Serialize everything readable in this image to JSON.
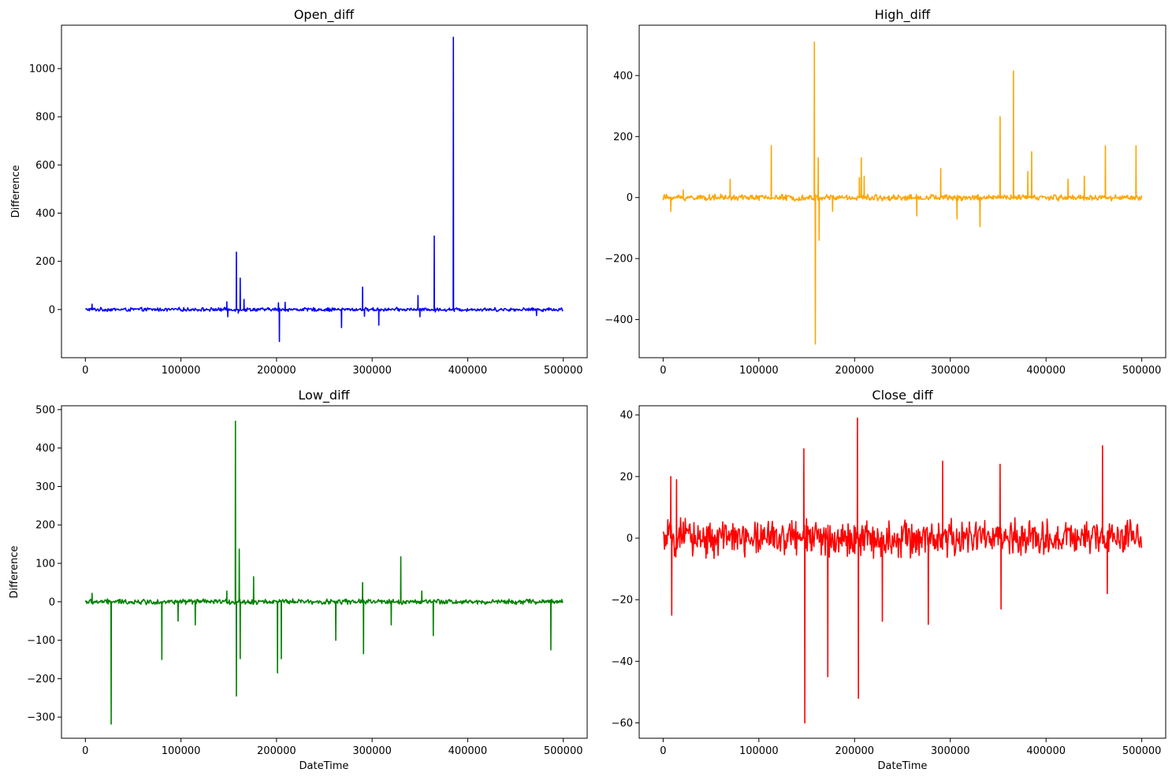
{
  "chart_data": [
    {
      "type": "line",
      "title": "Open_diff",
      "xlabel": "",
      "ylabel": "Difference",
      "color": "#0000ff",
      "xlim": [
        -25000,
        525000
      ],
      "ylim": [
        -200,
        1180
      ],
      "xticks": [
        0,
        100000,
        200000,
        300000,
        400000,
        500000
      ],
      "xtick_labels": [
        "0",
        "100000",
        "200000",
        "300000",
        "400000",
        "500000"
      ],
      "yticks": [
        0,
        200,
        400,
        600,
        800,
        1000
      ],
      "ytick_labels": [
        "0",
        "200",
        "400",
        "600",
        "800",
        "1000"
      ],
      "x_range": [
        0,
        500000
      ],
      "noise_amplitude": 9,
      "spikes": [
        {
          "x": 7000,
          "y": 22
        },
        {
          "x": 148000,
          "y": 32
        },
        {
          "x": 149000,
          "y": -30
        },
        {
          "x": 158000,
          "y": 238
        },
        {
          "x": 160000,
          "y": -15
        },
        {
          "x": 162000,
          "y": 130
        },
        {
          "x": 166000,
          "y": 42
        },
        {
          "x": 202000,
          "y": 28
        },
        {
          "x": 203000,
          "y": -133
        },
        {
          "x": 209000,
          "y": 30
        },
        {
          "x": 268000,
          "y": -75
        },
        {
          "x": 290000,
          "y": 93
        },
        {
          "x": 292000,
          "y": -28
        },
        {
          "x": 307000,
          "y": -65
        },
        {
          "x": 348000,
          "y": 58
        },
        {
          "x": 350000,
          "y": -30
        },
        {
          "x": 365000,
          "y": 305
        },
        {
          "x": 366000,
          "y": -10
        },
        {
          "x": 385000,
          "y": 1130
        },
        {
          "x": 386000,
          "y": -8
        },
        {
          "x": 472000,
          "y": -25
        }
      ]
    },
    {
      "type": "line",
      "title": "High_diff",
      "xlabel": "",
      "ylabel": "",
      "color": "#ffa500",
      "xlim": [
        -25000,
        525000
      ],
      "ylim": [
        -525,
        565
      ],
      "xticks": [
        0,
        100000,
        200000,
        300000,
        400000,
        500000
      ],
      "xtick_labels": [
        "0",
        "100000",
        "200000",
        "300000",
        "400000",
        "500000"
      ],
      "yticks": [
        -400,
        -200,
        0,
        200,
        400
      ],
      "ytick_labels": [
        "−400",
        "−200",
        "0",
        "200",
        "400"
      ],
      "x_range": [
        0,
        500000
      ],
      "noise_amplitude": 12,
      "spikes": [
        {
          "x": 8000,
          "y": -45
        },
        {
          "x": 21000,
          "y": 25
        },
        {
          "x": 70000,
          "y": 60
        },
        {
          "x": 113000,
          "y": 170
        },
        {
          "x": 158000,
          "y": 510
        },
        {
          "x": 159000,
          "y": -480
        },
        {
          "x": 162000,
          "y": 130
        },
        {
          "x": 163000,
          "y": -140
        },
        {
          "x": 177000,
          "y": -45
        },
        {
          "x": 205000,
          "y": 65
        },
        {
          "x": 207000,
          "y": 130
        },
        {
          "x": 210000,
          "y": 70
        },
        {
          "x": 265000,
          "y": -60
        },
        {
          "x": 290000,
          "y": 95
        },
        {
          "x": 307000,
          "y": -70
        },
        {
          "x": 331000,
          "y": -95
        },
        {
          "x": 352000,
          "y": 265
        },
        {
          "x": 366000,
          "y": 415
        },
        {
          "x": 385000,
          "y": 150
        },
        {
          "x": 381000,
          "y": 85
        },
        {
          "x": 423000,
          "y": 60
        },
        {
          "x": 440000,
          "y": 70
        },
        {
          "x": 462000,
          "y": 170
        },
        {
          "x": 494000,
          "y": 170
        }
      ]
    },
    {
      "type": "line",
      "title": "Low_diff",
      "xlabel": "DateTime",
      "ylabel": "Difference",
      "color": "#008000",
      "xlim": [
        -25000,
        525000
      ],
      "ylim": [
        -355,
        510
      ],
      "xticks": [
        0,
        100000,
        200000,
        300000,
        400000,
        500000
      ],
      "xtick_labels": [
        "0",
        "100000",
        "200000",
        "300000",
        "400000",
        "500000"
      ],
      "yticks": [
        -300,
        -200,
        -100,
        0,
        100,
        200,
        300,
        400,
        500
      ],
      "ytick_labels": [
        "−300",
        "−200",
        "−100",
        "0",
        "100",
        "200",
        "300",
        "400",
        "500"
      ],
      "x_range": [
        0,
        500000
      ],
      "noise_amplitude": 8,
      "spikes": [
        {
          "x": 7000,
          "y": 22
        },
        {
          "x": 27000,
          "y": -318
        },
        {
          "x": 80000,
          "y": -150
        },
        {
          "x": 97000,
          "y": -50
        },
        {
          "x": 115000,
          "y": -60
        },
        {
          "x": 148000,
          "y": 28
        },
        {
          "x": 157000,
          "y": 470
        },
        {
          "x": 158000,
          "y": -245
        },
        {
          "x": 161000,
          "y": 137
        },
        {
          "x": 162000,
          "y": -148
        },
        {
          "x": 176000,
          "y": 65
        },
        {
          "x": 201000,
          "y": -185
        },
        {
          "x": 205000,
          "y": -148
        },
        {
          "x": 262000,
          "y": -100
        },
        {
          "x": 290000,
          "y": 50
        },
        {
          "x": 291000,
          "y": -135
        },
        {
          "x": 320000,
          "y": -60
        },
        {
          "x": 330000,
          "y": 117
        },
        {
          "x": 352000,
          "y": 28
        },
        {
          "x": 364000,
          "y": -88
        },
        {
          "x": 487000,
          "y": -125
        }
      ]
    },
    {
      "type": "line",
      "title": "Close_diff",
      "xlabel": "DateTime",
      "ylabel": "",
      "color": "#ff0000",
      "xlim": [
        -25000,
        525000
      ],
      "ylim": [
        -65,
        43
      ],
      "xticks": [
        0,
        100000,
        200000,
        300000,
        400000,
        500000
      ],
      "xtick_labels": [
        "0",
        "100000",
        "200000",
        "300000",
        "400000",
        "500000"
      ],
      "yticks": [
        -60,
        -40,
        -20,
        0,
        20,
        40
      ],
      "ytick_labels": [
        "−60",
        "−40",
        "−20",
        "0",
        "20",
        "40"
      ],
      "x_range": [
        0,
        500000
      ],
      "noise_amplitude": 7,
      "spikes": [
        {
          "x": 8000,
          "y": 20
        },
        {
          "x": 9000,
          "y": -25
        },
        {
          "x": 14000,
          "y": 19
        },
        {
          "x": 147000,
          "y": 29
        },
        {
          "x": 148000,
          "y": -60
        },
        {
          "x": 172000,
          "y": -45
        },
        {
          "x": 203000,
          "y": 39
        },
        {
          "x": 204000,
          "y": -52
        },
        {
          "x": 229000,
          "y": -27
        },
        {
          "x": 277000,
          "y": -28
        },
        {
          "x": 292000,
          "y": 25
        },
        {
          "x": 352000,
          "y": 24
        },
        {
          "x": 353000,
          "y": -23
        },
        {
          "x": 459000,
          "y": 30
        },
        {
          "x": 464000,
          "y": -18
        }
      ]
    }
  ]
}
